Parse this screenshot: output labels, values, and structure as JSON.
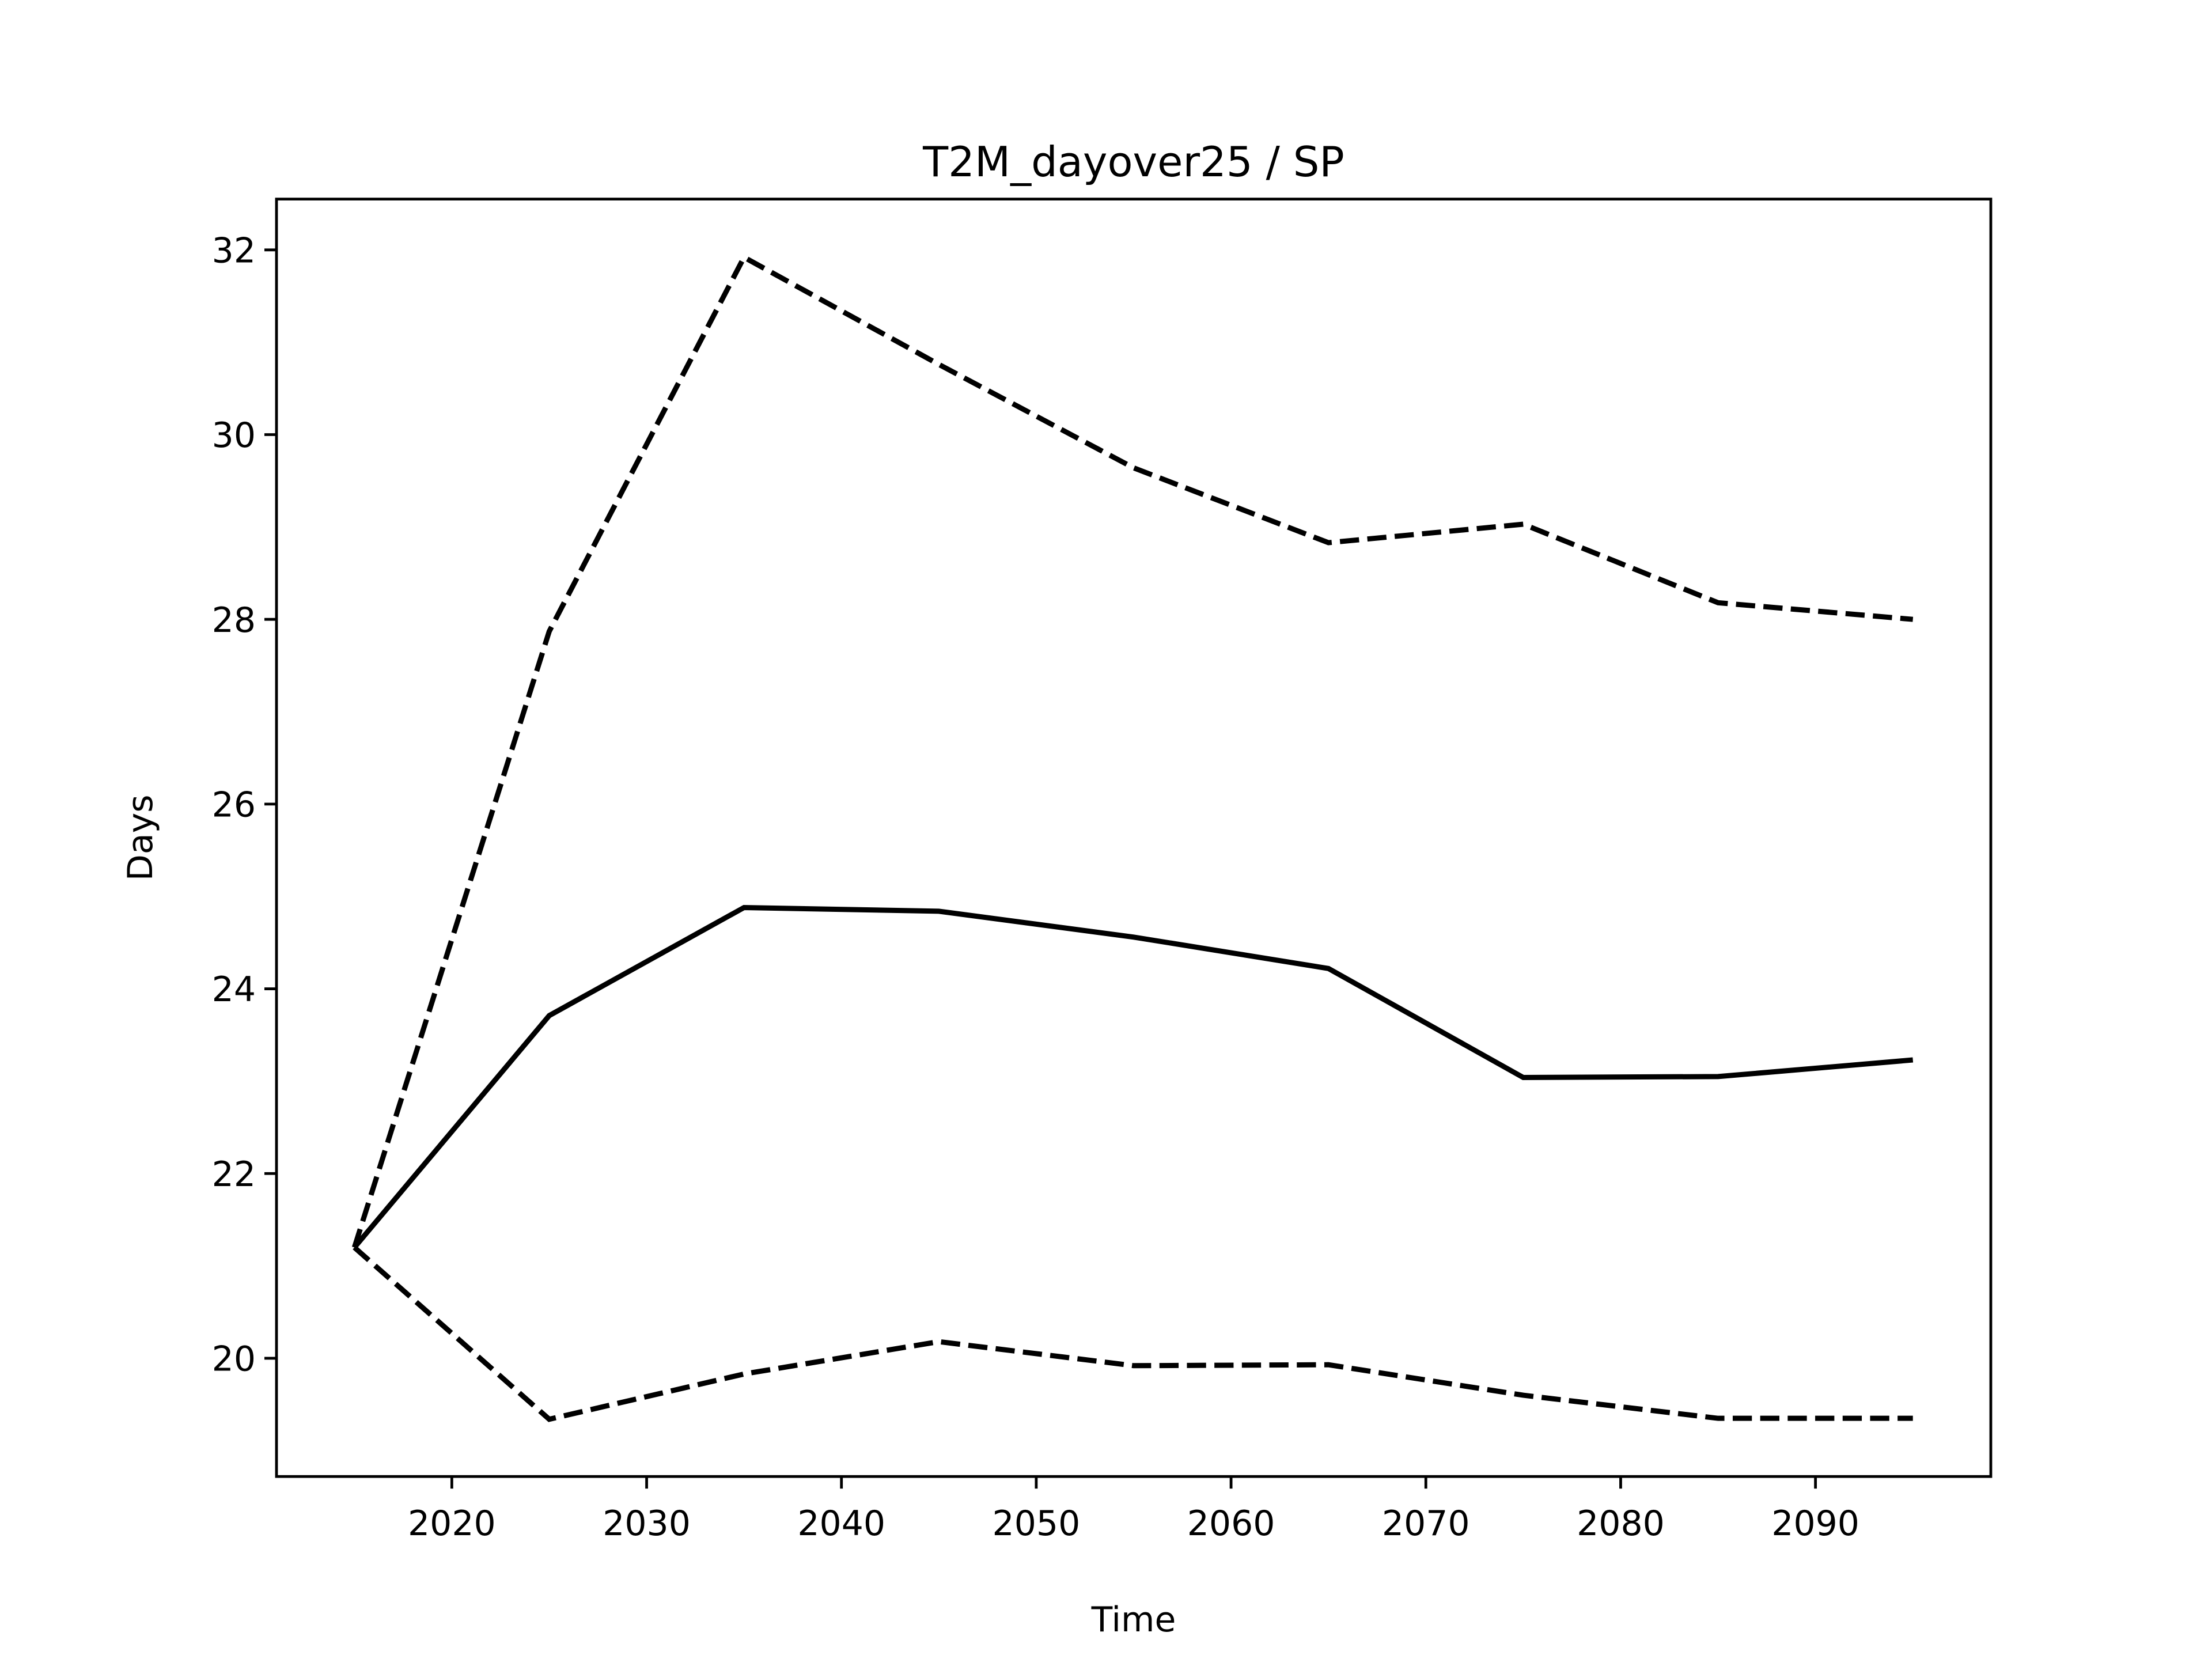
{
  "chart_data": {
    "type": "line",
    "title": "T2M_dayover25 / SP",
    "x_label": "Time",
    "y_label": "Days",
    "x": [
      2015,
      2025,
      2035,
      2045,
      2055,
      2065,
      2075,
      2085,
      2095
    ],
    "series": [
      {
        "color": "#000000",
        "linestyle": "solid",
        "values": [
          21.2,
          23.71,
          24.88,
          24.84,
          24.56,
          24.22,
          23.04,
          23.05,
          23.23
        ]
      },
      {
        "color": "#000000",
        "linestyle": "dashed",
        "values": [
          21.2,
          27.87,
          31.92,
          30.76,
          29.64,
          28.83,
          29.03,
          28.18,
          28.0
        ]
      },
      {
        "color": "#000000",
        "linestyle": "dashed",
        "values": [
          21.2,
          19.34,
          19.83,
          20.18,
          19.92,
          19.93,
          19.6,
          19.35,
          19.35
        ]
      }
    ],
    "xlim": [
      2011,
      2099
    ],
    "xticks": [
      2020,
      2030,
      2040,
      2050,
      2060,
      2070,
      2080,
      2090
    ],
    "ylim": [
      18.72,
      32.55
    ],
    "yticks": [
      20,
      22,
      24,
      26,
      28,
      30,
      32
    ],
    "grid": false
  }
}
